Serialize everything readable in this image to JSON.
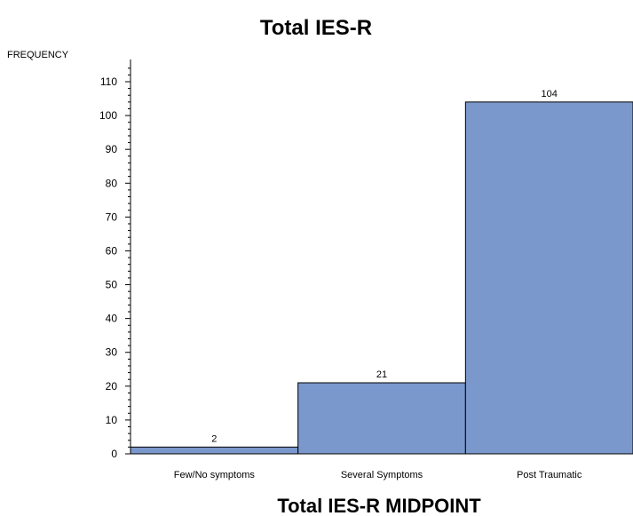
{
  "chart_data": {
    "type": "bar",
    "title": "Total IES-R",
    "xlabel": "Total IES-R MIDPOINT",
    "ylabel": "FREQUENCY",
    "categories": [
      "Few/No symptoms",
      "Several Symptoms",
      "Post Traumatic"
    ],
    "values": [
      2,
      21,
      104
    ],
    "data_labels": [
      "2",
      "21",
      "104"
    ],
    "ylim": [
      0,
      115
    ],
    "yticks": [
      0,
      10,
      20,
      30,
      40,
      50,
      60,
      70,
      80,
      90,
      100,
      110
    ],
    "bar_color": "#7b98cd",
    "grid": false,
    "legend": "none"
  }
}
